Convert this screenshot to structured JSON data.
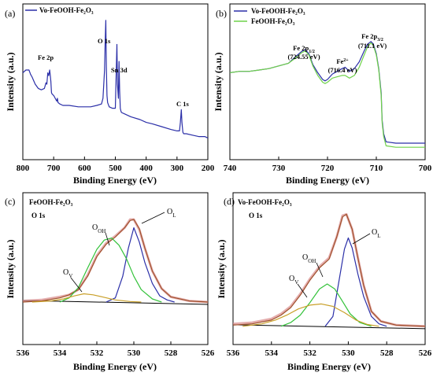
{
  "chart_data": [
    {
      "panel": "(a)",
      "type": "line",
      "xlabel": "Binding Energy (eV)",
      "ylabel": "Intensity (a.u.)",
      "xlim": [
        800,
        200
      ],
      "xticks": [
        800,
        700,
        600,
        500,
        400,
        300,
        200
      ],
      "ylim": [
        0,
        1
      ],
      "legend": "top-left",
      "series": [
        {
          "name": "Vo-FeOOH-Fe₂O₃",
          "color": "#2b2fa8",
          "x": [
            800,
            790,
            780,
            775,
            770,
            760,
            750,
            740,
            730,
            725,
            722,
            719,
            716,
            713,
            711,
            709,
            707,
            705,
            700,
            690,
            688,
            686,
            680,
            670,
            650,
            620,
            600,
            580,
            560,
            545,
            540,
            535,
            533,
            531,
            529,
            527,
            525,
            520,
            510,
            500,
            497,
            495,
            493,
            490,
            488,
            486,
            484,
            482,
            480,
            470,
            450,
            420,
            400,
            380,
            350,
            320,
            300,
            292,
            289,
            286,
            284,
            281,
            278,
            270,
            250,
            230,
            210,
            200
          ],
          "y": [
            0.58,
            0.6,
            0.6,
            0.57,
            0.55,
            0.5,
            0.47,
            0.46,
            0.47,
            0.51,
            0.5,
            0.58,
            0.56,
            0.6,
            0.56,
            0.52,
            0.44,
            0.43,
            0.42,
            0.38,
            0.4,
            0.37,
            0.36,
            0.35,
            0.35,
            0.34,
            0.34,
            0.34,
            0.35,
            0.36,
            0.4,
            0.6,
            0.8,
            0.95,
            0.62,
            0.42,
            0.37,
            0.34,
            0.33,
            0.33,
            0.6,
            0.78,
            0.5,
            0.4,
            0.66,
            0.45,
            0.33,
            0.31,
            0.3,
            0.29,
            0.27,
            0.25,
            0.23,
            0.22,
            0.2,
            0.18,
            0.17,
            0.17,
            0.23,
            0.32,
            0.23,
            0.16,
            0.15,
            0.15,
            0.14,
            0.13,
            0.13,
            0.12
          ]
        }
      ],
      "annotations": [
        {
          "text": "Fe 2p",
          "x": 716,
          "y": 0.66
        },
        {
          "text": "O 1s",
          "x": 531,
          "y": 0.99
        },
        {
          "text": "Sn 3d",
          "x": 478,
          "y": 0.87
        },
        {
          "text": "C 1s",
          "x": 285,
          "y": 0.37
        }
      ]
    },
    {
      "panel": "(b)",
      "type": "line",
      "xlabel": "Binding Energy (eV)",
      "ylabel": "Intensity (a.u.)",
      "xlim": [
        740,
        700
      ],
      "xticks": [
        740,
        730,
        720,
        710,
        700
      ],
      "ylim": [
        0,
        1
      ],
      "legend": "top-left",
      "series": [
        {
          "name": "Vo-FeOOH-Fe₂O₃",
          "color": "#2b2fa8",
          "x": [
            740,
            738,
            736,
            734,
            732,
            730,
            728,
            726.5,
            725.2,
            724.55,
            723.8,
            723,
            722,
            721,
            720.5,
            720,
            719,
            718,
            717,
            716.4,
            715.5,
            714.5,
            713.5,
            712.5,
            711.8,
            711.1,
            710.6,
            710,
            709.5,
            709,
            708.8,
            708.5,
            708,
            706,
            704,
            702,
            700
          ],
          "y": [
            0.55,
            0.56,
            0.56,
            0.57,
            0.58,
            0.6,
            0.62,
            0.67,
            0.71,
            0.72,
            0.69,
            0.61,
            0.55,
            0.5,
            0.49,
            0.5,
            0.54,
            0.56,
            0.58,
            0.59,
            0.56,
            0.58,
            0.63,
            0.71,
            0.76,
            0.78,
            0.76,
            0.69,
            0.58,
            0.4,
            0.2,
            0.1,
            0.04,
            0.03,
            0.03,
            0.03,
            0.03
          ]
        },
        {
          "name": "FeOOH-Fe₂O₃",
          "color": "#6fd24a",
          "x": [
            740,
            738,
            736,
            734,
            732,
            730,
            728,
            726.5,
            725.2,
            724.55,
            723.8,
            723,
            722,
            721,
            720.5,
            720,
            719,
            718,
            717,
            716.4,
            715.5,
            714.5,
            713.5,
            712.5,
            711.8,
            711.1,
            710.6,
            710,
            709.5,
            709,
            708.8,
            708.5,
            708,
            706,
            704,
            702,
            700
          ],
          "y": [
            0.55,
            0.56,
            0.56,
            0.57,
            0.58,
            0.6,
            0.62,
            0.66,
            0.7,
            0.71,
            0.68,
            0.6,
            0.53,
            0.48,
            0.47,
            0.48,
            0.51,
            0.52,
            0.53,
            0.53,
            0.51,
            0.53,
            0.59,
            0.68,
            0.74,
            0.77,
            0.75,
            0.68,
            0.57,
            0.38,
            0.18,
            0.08,
            0.01,
            0.0,
            0.0,
            0.0,
            0.0
          ]
        }
      ],
      "annotations": [
        {
          "text": "Fe 2p1/2",
          "x": 724.55,
          "y": 0.86
        },
        {
          "text": "(724.55 eV)",
          "x": 724.55,
          "y": 0.79
        },
        {
          "text": "Fe2+",
          "x": 716.4,
          "y": 0.72
        },
        {
          "text": "(716.4 eV)",
          "x": 716.4,
          "y": 0.65
        },
        {
          "text": "Fe 2p3/2",
          "x": 711.1,
          "y": 0.94
        },
        {
          "text": "(711.1 eV)",
          "x": 711.1,
          "y": 0.86
        }
      ]
    },
    {
      "panel": "(c)",
      "type": "line",
      "title": "FeOOH-Fe₂O₃",
      "subtitle": "O 1s",
      "xlabel": "Binding Energy (eV)",
      "ylabel": "Intensity (a.u.)",
      "xlim": [
        536,
        526
      ],
      "xticks": [
        536,
        534,
        532,
        530,
        528,
        526
      ],
      "ylim": [
        0,
        1
      ],
      "series": [
        {
          "role": "raw",
          "color": "#d98a8a",
          "x": [
            536,
            535,
            534,
            533.5,
            533,
            532.5,
            532,
            531.5,
            531,
            530.5,
            530.2,
            530,
            529.7,
            529.4,
            529,
            528.5,
            528,
            527,
            526
          ],
          "y": [
            0.01,
            0.02,
            0.05,
            0.07,
            0.12,
            0.26,
            0.45,
            0.57,
            0.64,
            0.72,
            0.8,
            0.8,
            0.7,
            0.52,
            0.3,
            0.13,
            0.05,
            0.01,
            0.0
          ]
        },
        {
          "role": "fit",
          "color": "#a0522d",
          "x": [
            536,
            535,
            534,
            533.5,
            533,
            532.5,
            532,
            531.5,
            531,
            530.5,
            530.2,
            530,
            529.7,
            529.4,
            529,
            528.5,
            528,
            527,
            526
          ],
          "y": [
            0.0,
            0.01,
            0.04,
            0.07,
            0.12,
            0.25,
            0.44,
            0.56,
            0.63,
            0.72,
            0.79,
            0.8,
            0.71,
            0.52,
            0.3,
            0.13,
            0.05,
            0.01,
            0.0
          ]
        },
        {
          "role": "O_L",
          "color": "#2b2fa8",
          "x": [
            531.5,
            531,
            530.6,
            530.3,
            530,
            529.7,
            529.4,
            529,
            528.6,
            528.2,
            527.8
          ],
          "y": [
            0.0,
            0.04,
            0.25,
            0.52,
            0.72,
            0.58,
            0.38,
            0.18,
            0.06,
            0.02,
            0.0
          ]
        },
        {
          "role": "O_OH",
          "color": "#33c23a",
          "x": [
            534,
            533.5,
            533,
            532.5,
            532,
            531.6,
            531.2,
            530.8,
            530.4,
            530,
            529.6,
            529,
            528.5
          ],
          "y": [
            0.0,
            0.04,
            0.14,
            0.33,
            0.51,
            0.6,
            0.62,
            0.55,
            0.42,
            0.25,
            0.12,
            0.03,
            0.0
          ]
        },
        {
          "role": "O_V",
          "color": "#c9a02a",
          "x": [
            535.5,
            534.5,
            533.8,
            533.2,
            532.7,
            532.2,
            531.7,
            531,
            530.2,
            529.6
          ],
          "y": [
            0.0,
            0.01,
            0.03,
            0.06,
            0.08,
            0.07,
            0.05,
            0.02,
            0.005,
            0.0
          ]
        }
      ],
      "annotations": [
        {
          "text": "OV",
          "x": 533.1,
          "y": 0.21
        },
        {
          "text": "OOH",
          "x": 532.3,
          "y": 0.59
        },
        {
          "text": "OL",
          "x": 528.8,
          "y": 0.75
        }
      ]
    },
    {
      "panel": "(d)",
      "type": "line",
      "title": "Vo-FeOOH-Fe₂O₃",
      "subtitle": "O 1s",
      "xlabel": "Binding Energy (eV)",
      "ylabel": "Intensity (a.u.)",
      "xlim": [
        536,
        526
      ],
      "xticks": [
        536,
        534,
        532,
        530,
        528,
        526
      ],
      "ylim": [
        0,
        1
      ],
      "series": [
        {
          "role": "raw",
          "color": "#d98a8a",
          "x": [
            536,
            535,
            534,
            533.5,
            533,
            532.5,
            532,
            531.5,
            531,
            530.6,
            530.3,
            530.1,
            529.8,
            529.5,
            529.2,
            528.8,
            528.3,
            527.5,
            526
          ],
          "y": [
            0.02,
            0.03,
            0.06,
            0.1,
            0.16,
            0.26,
            0.38,
            0.48,
            0.55,
            0.72,
            0.89,
            0.9,
            0.78,
            0.55,
            0.33,
            0.12,
            0.04,
            0.01,
            0.0
          ]
        },
        {
          "role": "fit",
          "color": "#a0522d",
          "x": [
            536,
            535,
            534,
            533.5,
            533,
            532.5,
            532,
            531.5,
            531,
            530.6,
            530.3,
            530.1,
            529.8,
            529.5,
            529.2,
            528.8,
            528.3,
            527.5,
            526
          ],
          "y": [
            0.01,
            0.02,
            0.05,
            0.09,
            0.15,
            0.25,
            0.37,
            0.47,
            0.54,
            0.72,
            0.88,
            0.9,
            0.78,
            0.55,
            0.33,
            0.12,
            0.04,
            0.01,
            0.0
          ]
        },
        {
          "role": "O_L",
          "color": "#2b2fa8",
          "x": [
            531.2,
            530.8,
            530.5,
            530.2,
            530,
            529.8,
            529.5,
            529.2,
            528.8,
            528.4,
            528
          ],
          "y": [
            0.0,
            0.08,
            0.35,
            0.62,
            0.71,
            0.63,
            0.42,
            0.24,
            0.08,
            0.02,
            0.0
          ]
        },
        {
          "role": "O_OH",
          "color": "#33c23a",
          "x": [
            533.5,
            533,
            532.5,
            532,
            531.5,
            531.1,
            530.7,
            530.3,
            529.9,
            529.4,
            528.8
          ],
          "y": [
            0.0,
            0.03,
            0.09,
            0.19,
            0.3,
            0.34,
            0.3,
            0.2,
            0.1,
            0.03,
            0.0
          ]
        },
        {
          "role": "O_V",
          "color": "#c9a02a",
          "x": [
            535.5,
            534.5,
            533.8,
            533.2,
            532.6,
            532,
            531.4,
            530.8,
            530.2,
            529.6,
            529,
            528.4
          ],
          "y": [
            0.0,
            0.02,
            0.05,
            0.09,
            0.14,
            0.17,
            0.18,
            0.16,
            0.11,
            0.05,
            0.015,
            0.0
          ]
        }
      ],
      "annotations": [
        {
          "text": "OV",
          "x": 533.0,
          "y": 0.44
        },
        {
          "text": "OOH",
          "x": 532.0,
          "y": 0.66
        },
        {
          "text": "OL",
          "x": 528.8,
          "y": 0.78
        }
      ]
    }
  ]
}
